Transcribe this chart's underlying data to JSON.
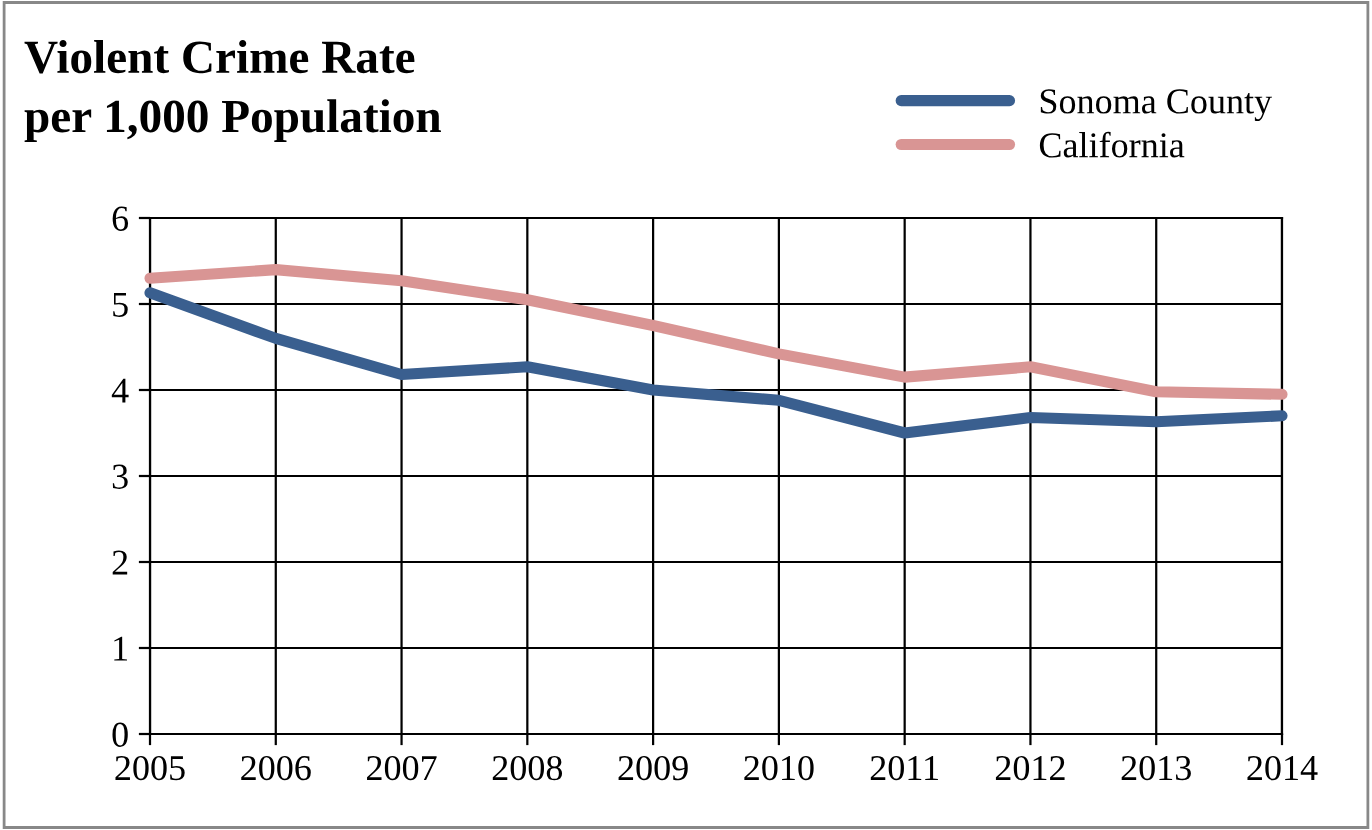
{
  "chart_data": {
    "type": "line",
    "title": "Violent Crime Rate\nper 1,000 Population",
    "x": [
      2005,
      2006,
      2007,
      2008,
      2009,
      2010,
      2011,
      2012,
      2013,
      2014
    ],
    "series": [
      {
        "name": "Sonoma County",
        "color": "#3a5f8f",
        "values": [
          5.13,
          4.6,
          4.18,
          4.27,
          4.0,
          3.88,
          3.5,
          3.68,
          3.63,
          3.7
        ]
      },
      {
        "name": "California",
        "color": "#d99594",
        "values": [
          5.3,
          5.4,
          5.27,
          5.05,
          4.75,
          4.42,
          4.15,
          4.27,
          3.98,
          3.95
        ]
      }
    ],
    "xlim": [
      2005,
      2014
    ],
    "xticks": [
      2005,
      2006,
      2007,
      2008,
      2009,
      2010,
      2011,
      2012,
      2013,
      2014
    ],
    "ylim": [
      0,
      6
    ],
    "yticks": [
      0,
      1,
      2,
      3,
      4,
      5,
      6
    ],
    "grid": true,
    "legend": "top right",
    "marker": "none",
    "line_style": "solid"
  }
}
